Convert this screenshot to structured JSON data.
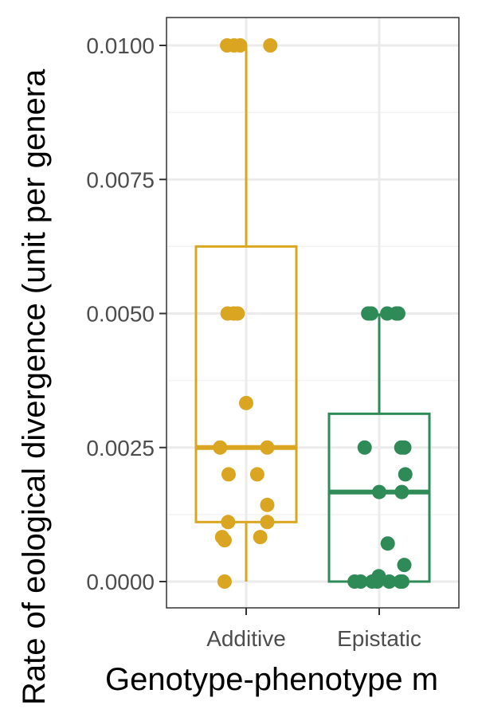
{
  "chart_data": {
    "type": "box",
    "title": "",
    "xlabel": "Genotype-phenotype m",
    "ylabel": "Rate of eological divergence (unit per genera",
    "ylim": [
      -0.0005,
      0.0105
    ],
    "yticks": [
      0.0,
      0.0025,
      0.005,
      0.0075,
      0.01
    ],
    "ytick_labels": [
      "0.0000",
      "0.0025",
      "0.0050",
      "0.0075",
      "0.0100"
    ],
    "grid": true,
    "legend": "none",
    "categories": [
      "Additive",
      "Epistatic"
    ],
    "series": [
      {
        "name": "Additive",
        "color": "#DAA520",
        "box": {
          "whisker_low": 0.0,
          "q1": 0.00111,
          "median": 0.0025,
          "q3": 0.00625,
          "whisker_high": 0.01
        },
        "points": [
          {
            "x": -0.38,
            "y": 0.01
          },
          {
            "x": -0.24,
            "y": 0.01
          },
          {
            "x": -0.12,
            "y": 0.01
          },
          {
            "x": 0.48,
            "y": 0.01
          },
          {
            "x": -0.37,
            "y": 0.005
          },
          {
            "x": -0.25,
            "y": 0.005
          },
          {
            "x": -0.17,
            "y": 0.005
          },
          {
            "x": 0.0,
            "y": 0.00333
          },
          {
            "x": -0.52,
            "y": 0.0025
          },
          {
            "x": 0.42,
            "y": 0.0025
          },
          {
            "x": -0.35,
            "y": 0.002
          },
          {
            "x": 0.22,
            "y": 0.002
          },
          {
            "x": 0.42,
            "y": 0.00143
          },
          {
            "x": -0.36,
            "y": 0.00111
          },
          {
            "x": 0.42,
            "y": 0.00111
          },
          {
            "x": -0.48,
            "y": 0.00083
          },
          {
            "x": 0.28,
            "y": 0.00083
          },
          {
            "x": -0.43,
            "y": 0.00077
          },
          {
            "x": -0.43,
            "y": 0.0
          }
        ]
      },
      {
        "name": "Epistatic",
        "color": "#2E8B57",
        "box": {
          "whisker_low": 0.0,
          "q1": 0.0,
          "median": 0.00167,
          "q3": 0.00313,
          "whisker_high": 0.005
        },
        "points": [
          {
            "x": -0.22,
            "y": 0.005
          },
          {
            "x": -0.16,
            "y": 0.005
          },
          {
            "x": 0.16,
            "y": 0.005
          },
          {
            "x": 0.34,
            "y": 0.005
          },
          {
            "x": 0.38,
            "y": 0.005
          },
          {
            "x": -0.29,
            "y": 0.0025
          },
          {
            "x": 0.44,
            "y": 0.0025
          },
          {
            "x": 0.5,
            "y": 0.0025
          },
          {
            "x": 0.52,
            "y": 0.002
          },
          {
            "x": 0.0,
            "y": 0.00167
          },
          {
            "x": 0.45,
            "y": 0.00167
          },
          {
            "x": 0.17,
            "y": 0.00071
          },
          {
            "x": 0.5,
            "y": 0.00031
          },
          {
            "x": -0.01,
            "y": 0.0001
          },
          {
            "x": -0.49,
            "y": 0.0
          },
          {
            "x": -0.37,
            "y": 0.0
          },
          {
            "x": -0.14,
            "y": 0.0
          },
          {
            "x": -0.04,
            "y": 0.0
          },
          {
            "x": 0.2,
            "y": 0.0
          },
          {
            "x": 0.42,
            "y": 0.0
          },
          {
            "x": 0.46,
            "y": 0.0
          }
        ]
      }
    ]
  }
}
